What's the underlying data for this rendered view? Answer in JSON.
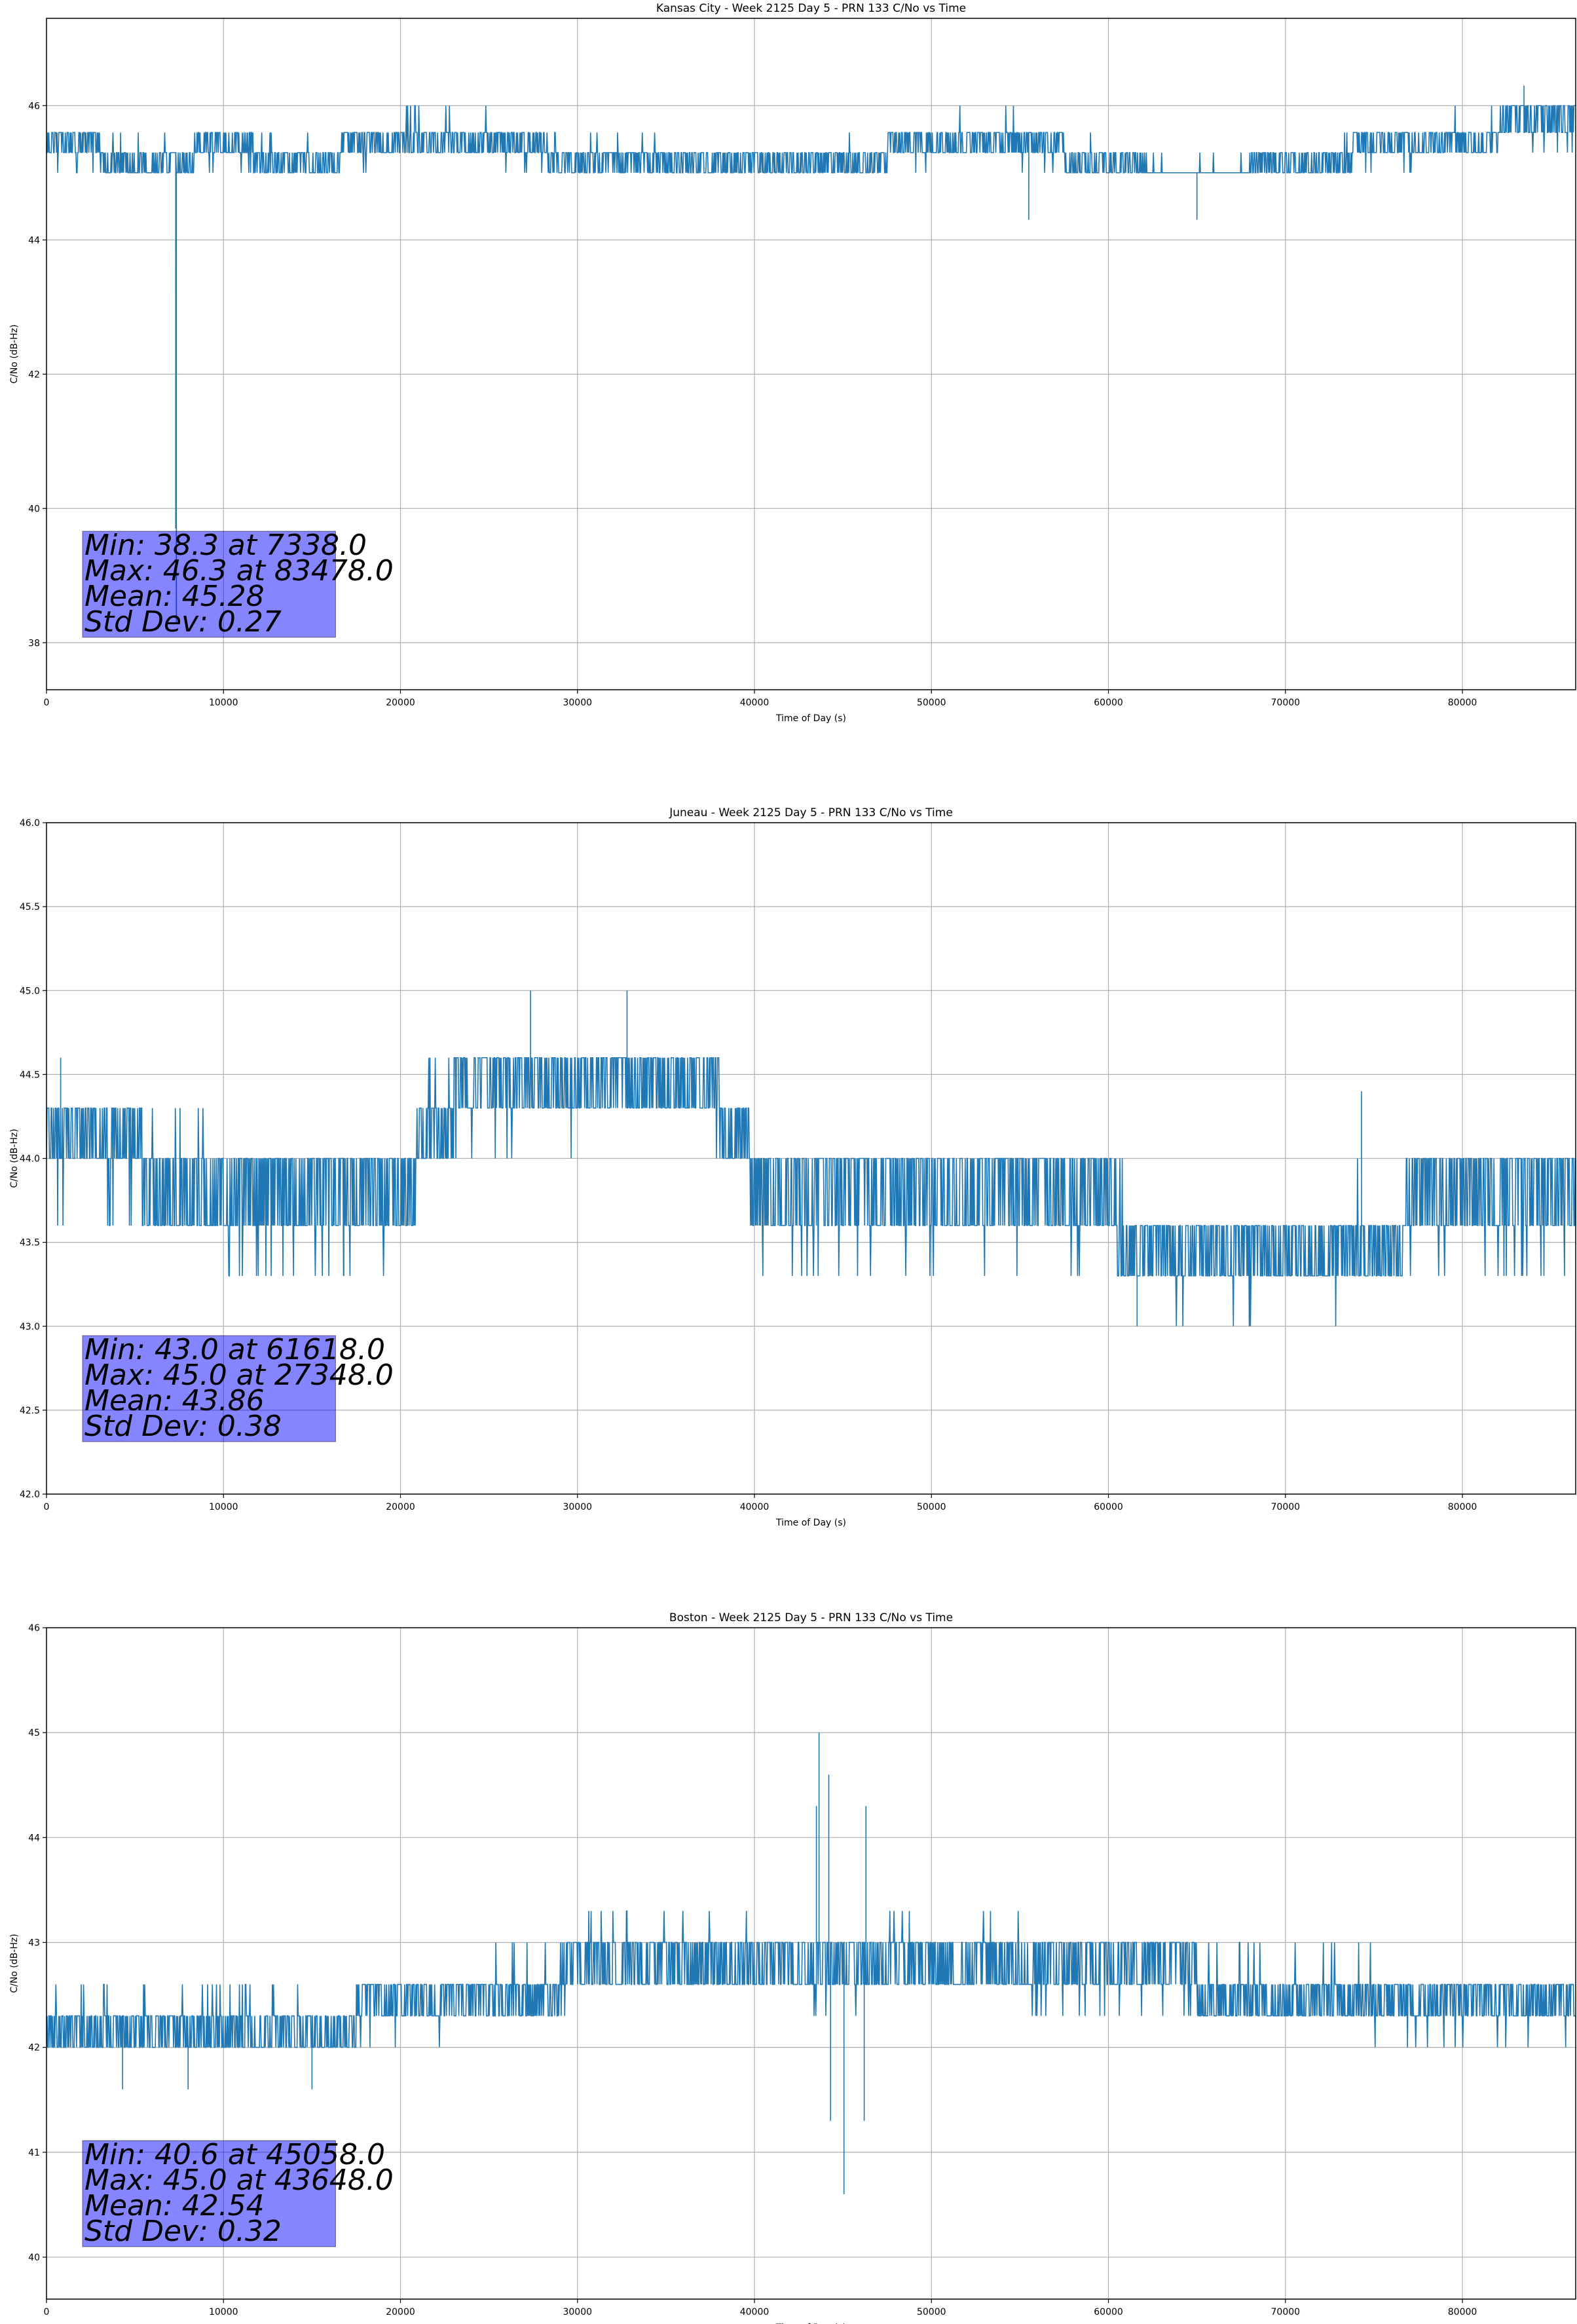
{
  "chart_data": [
    {
      "type": "line",
      "title": "Kansas City - Week 2125 Day 5 - PRN 133 C/No vs Time",
      "xlabel": "Time of Day (s)",
      "ylabel": "C/No (dB-Hz)",
      "xlim": [
        0,
        86400
      ],
      "ylim": [
        37.3,
        47.3
      ],
      "xticks": [
        0,
        10000,
        20000,
        30000,
        40000,
        50000,
        60000,
        70000,
        80000
      ],
      "yticks": [
        38,
        40,
        42,
        44,
        46
      ],
      "ytick_labels": [
        "38",
        "40",
        "42",
        "44",
        "46"
      ],
      "grid": true,
      "color": "#1f77b4",
      "levels": [
        45.0,
        45.3,
        45.6,
        46.0
      ],
      "series_profile": {
        "x": [
          0,
          5000,
          10000,
          15000,
          20000,
          25000,
          30000,
          35000,
          40000,
          45000,
          50000,
          55000,
          60000,
          65000,
          70000,
          75000,
          80000,
          86400
        ],
        "center": [
          45.45,
          45.2,
          45.35,
          45.2,
          45.5,
          45.5,
          45.2,
          45.15,
          45.15,
          45.15,
          45.45,
          45.45,
          45.15,
          44.8,
          45.15,
          45.35,
          45.5,
          45.8
        ]
      },
      "spikes": [
        {
          "x": 7338,
          "y": 38.3
        },
        {
          "x": 7300,
          "y": 39.7
        },
        {
          "x": 55500,
          "y": 44.3
        },
        {
          "x": 65000,
          "y": 44.3
        },
        {
          "x": 83478,
          "y": 46.3
        }
      ],
      "stats": {
        "min": "Min: 38.3 at 7338.0",
        "max": "Max: 46.3 at 83478.0",
        "mean": "Mean: 45.28",
        "std": "Std Dev: 0.27"
      }
    },
    {
      "type": "line",
      "title": "Juneau - Week 2125 Day 5 - PRN 133 C/No vs Time",
      "xlabel": "Time of Day (s)",
      "ylabel": "C/No (dB-Hz)",
      "xlim": [
        0,
        86400
      ],
      "ylim": [
        42.0,
        46.0
      ],
      "xticks": [
        0,
        10000,
        20000,
        30000,
        40000,
        50000,
        60000,
        70000,
        80000
      ],
      "yticks": [
        42.0,
        42.5,
        43.0,
        43.5,
        44.0,
        44.5,
        45.0,
        45.5,
        46.0
      ],
      "ytick_labels": [
        "42.0",
        "42.5",
        "43.0",
        "43.5",
        "44.0",
        "44.5",
        "45.0",
        "45.5",
        "46.0"
      ],
      "grid": true,
      "color": "#1f77b4",
      "levels": [
        43.0,
        43.3,
        43.6,
        44.0,
        44.3,
        44.6
      ],
      "series_profile": {
        "x": [
          0,
          5000,
          6000,
          10000,
          15000,
          20000,
          21500,
          24000,
          30000,
          36500,
          39500,
          40000,
          45000,
          50000,
          55000,
          60000,
          61000,
          65000,
          70000,
          75000,
          80000,
          86400
        ],
        "center": [
          44.1,
          44.1,
          43.85,
          43.8,
          43.8,
          43.8,
          44.15,
          44.4,
          44.45,
          44.45,
          44.15,
          43.8,
          43.8,
          43.75,
          43.7,
          43.75,
          43.45,
          43.3,
          43.35,
          43.5,
          43.8,
          43.8
        ]
      },
      "spikes": [
        {
          "x": 800,
          "y": 44.6
        },
        {
          "x": 27348,
          "y": 45.0
        },
        {
          "x": 32800,
          "y": 45.0
        },
        {
          "x": 16800,
          "y": 43.3
        },
        {
          "x": 61618,
          "y": 43.0
        },
        {
          "x": 74300,
          "y": 44.4
        }
      ],
      "stats": {
        "min": "Min: 43.0 at 61618.0",
        "max": "Max: 45.0 at 27348.0",
        "mean": "Mean: 43.86",
        "std": "Std Dev: 0.38"
      }
    },
    {
      "type": "line",
      "title": "Boston - Week 2125 Day 5 - PRN 133 C/No vs Time",
      "xlabel": "Time of Day (s)",
      "ylabel": "C/No (dB-Hz)",
      "xlim": [
        0,
        86400
      ],
      "ylim": [
        39.6,
        46.0
      ],
      "xticks": [
        0,
        10000,
        20000,
        30000,
        40000,
        50000,
        60000,
        70000,
        80000
      ],
      "yticks": [
        40,
        41,
        42,
        43,
        44,
        45,
        46
      ],
      "ytick_labels": [
        "40",
        "41",
        "42",
        "43",
        "44",
        "45",
        "46"
      ],
      "grid": true,
      "color": "#1f77b4",
      "levels": [
        42.0,
        42.3,
        42.6,
        43.0,
        43.3
      ],
      "series_profile": {
        "x": [
          0,
          5000,
          10000,
          15000,
          20000,
          25000,
          28500,
          30000,
          35000,
          40000,
          45000,
          50000,
          55000,
          60000,
          65000,
          70000,
          75000,
          80000,
          86400
        ],
        "center": [
          42.2,
          42.2,
          42.2,
          42.2,
          42.4,
          42.45,
          42.5,
          42.8,
          42.85,
          42.8,
          42.75,
          42.85,
          42.8,
          42.75,
          42.6,
          42.5,
          42.45,
          42.4,
          42.4
        ]
      },
      "spikes": [
        {
          "x": 43648,
          "y": 45.0
        },
        {
          "x": 43500,
          "y": 44.3
        },
        {
          "x": 44200,
          "y": 44.6
        },
        {
          "x": 46300,
          "y": 44.3
        },
        {
          "x": 45058,
          "y": 40.6
        },
        {
          "x": 44300,
          "y": 41.3
        },
        {
          "x": 46200,
          "y": 41.3
        },
        {
          "x": 4300,
          "y": 41.6
        },
        {
          "x": 8000,
          "y": 41.6
        },
        {
          "x": 15000,
          "y": 41.6
        }
      ],
      "stats": {
        "min": "Min: 40.6 at 45058.0",
        "max": "Max: 45.0 at 43648.0",
        "mean": "Mean: 42.54",
        "std": "Std Dev: 0.32"
      }
    }
  ]
}
